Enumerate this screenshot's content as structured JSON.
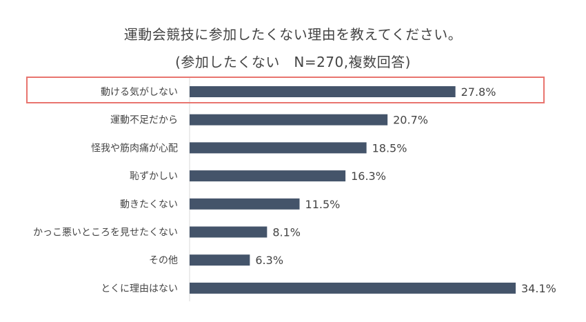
{
  "title_line1": "運動会競技に参加したくない理由を教えてください。",
  "title_line2": "(参加したくない　N=270,複数回答)",
  "colors": {
    "bar": "#44546a",
    "highlight": "#e8746e",
    "label": "#444444",
    "axis": "#d9d9d9"
  },
  "chart_data": {
    "type": "bar",
    "orientation": "horizontal",
    "title": "運動会競技に参加したくない理由を教えてください。",
    "subtitle": "(参加したくない　N=270,複数回答)",
    "categories": [
      "動ける気がしない",
      "運動不足だから",
      "怪我や筋肉痛が心配",
      "恥ずかしい",
      "動きたくない",
      "かっこ悪いところを見せたくない",
      "その他",
      "とくに理由はない"
    ],
    "values": [
      27.8,
      20.7,
      18.5,
      16.3,
      11.5,
      8.1,
      6.3,
      34.1
    ],
    "value_labels": [
      "27.8%",
      "20.7%",
      "18.5%",
      "16.3%",
      "11.5%",
      "8.1%",
      "6.3%",
      "34.1%"
    ],
    "unit": "%",
    "highlighted_category": "動ける気がしない",
    "xlim": [
      0,
      34.1
    ],
    "grid": false,
    "legend": "none"
  }
}
